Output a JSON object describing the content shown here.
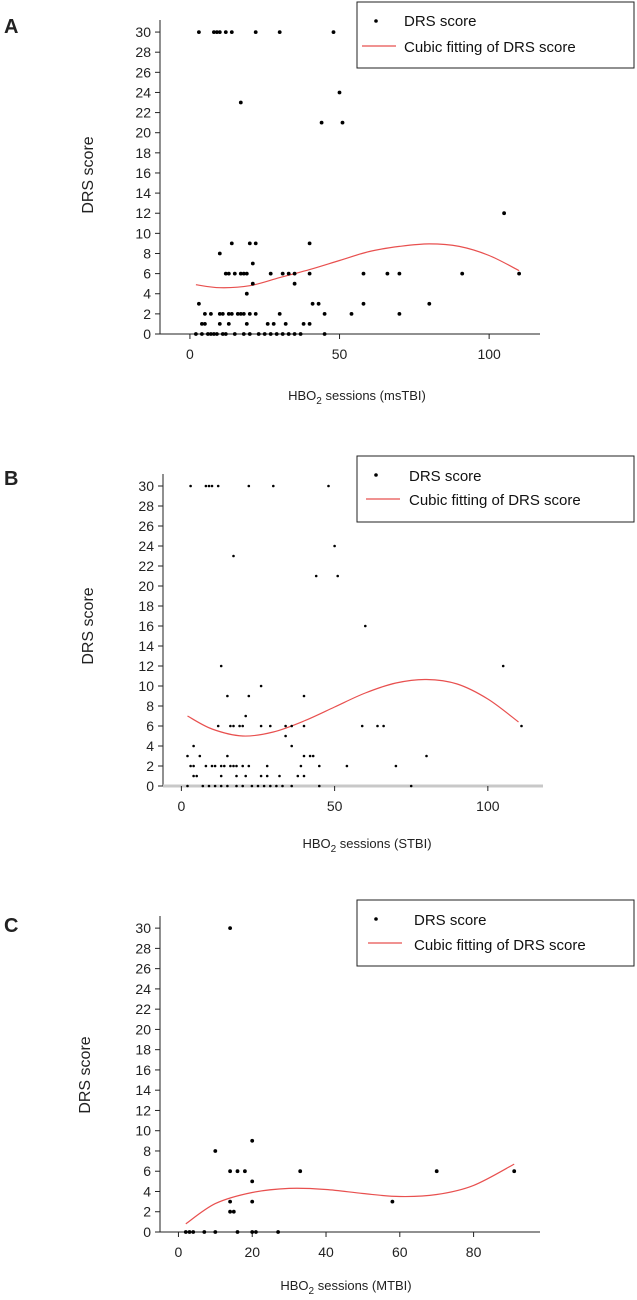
{
  "colors": {
    "points": "#000000",
    "fit": "#e8504f",
    "axis_gray": "#c8c8c8",
    "text": "#222222"
  },
  "chart_data": [
    {
      "panel": "A",
      "type": "scatter",
      "xlabel_main": "HBO",
      "xlabel_sub": "2",
      "xlabel_rest": " sessions (msTBI)",
      "ylabel": "DRS score",
      "xlim": [
        -10,
        117
      ],
      "ylim": [
        0,
        31
      ],
      "xticks": [
        0,
        50,
        100
      ],
      "yticks": [
        0,
        2,
        4,
        6,
        8,
        10,
        12,
        14,
        16,
        18,
        20,
        22,
        24,
        26,
        28,
        30
      ],
      "legend": [
        "DRS score",
        "Cubic fitting of DRS score"
      ],
      "series": [
        {
          "name": "DRS score",
          "points": [
            [
              3,
              30
            ],
            [
              8,
              30
            ],
            [
              9,
              30
            ],
            [
              10,
              30
            ],
            [
              12,
              30
            ],
            [
              14,
              30
            ],
            [
              22,
              30
            ],
            [
              30,
              30
            ],
            [
              48,
              30
            ],
            [
              50,
              24
            ],
            [
              17,
              23
            ],
            [
              44,
              21
            ],
            [
              51,
              21
            ],
            [
              105,
              12
            ],
            [
              10,
              8
            ],
            [
              14,
              9
            ],
            [
              20,
              9
            ],
            [
              22,
              9
            ],
            [
              40,
              9
            ],
            [
              21,
              7
            ],
            [
              12,
              6
            ],
            [
              13,
              6
            ],
            [
              15,
              6
            ],
            [
              17,
              6
            ],
            [
              18,
              6
            ],
            [
              19,
              6
            ],
            [
              27,
              6
            ],
            [
              31,
              6
            ],
            [
              33,
              6
            ],
            [
              35,
              6
            ],
            [
              40,
              6
            ],
            [
              58,
              6
            ],
            [
              66,
              6
            ],
            [
              70,
              6
            ],
            [
              91,
              6
            ],
            [
              110,
              6
            ],
            [
              21,
              5
            ],
            [
              35,
              5
            ],
            [
              19,
              4
            ],
            [
              41,
              3
            ],
            [
              43,
              3
            ],
            [
              58,
              3
            ],
            [
              80,
              3
            ],
            [
              3,
              3
            ],
            [
              5,
              2
            ],
            [
              7,
              2
            ],
            [
              10,
              2
            ],
            [
              11,
              2
            ],
            [
              13,
              2
            ],
            [
              14,
              2
            ],
            [
              16,
              2
            ],
            [
              17,
              2
            ],
            [
              18,
              2
            ],
            [
              20,
              2
            ],
            [
              22,
              2
            ],
            [
              30,
              2
            ],
            [
              45,
              2
            ],
            [
              54,
              2
            ],
            [
              70,
              2
            ],
            [
              4,
              1
            ],
            [
              5,
              1
            ],
            [
              10,
              1
            ],
            [
              13,
              1
            ],
            [
              19,
              1
            ],
            [
              26,
              1
            ],
            [
              28,
              1
            ],
            [
              32,
              1
            ],
            [
              38,
              1
            ],
            [
              40,
              1
            ],
            [
              2,
              0
            ],
            [
              4,
              0
            ],
            [
              6,
              0
            ],
            [
              7,
              0
            ],
            [
              8,
              0
            ],
            [
              9,
              0
            ],
            [
              11,
              0
            ],
            [
              12,
              0
            ],
            [
              15,
              0
            ],
            [
              18,
              0
            ],
            [
              20,
              0
            ],
            [
              23,
              0
            ],
            [
              25,
              0
            ],
            [
              27,
              0
            ],
            [
              29,
              0
            ],
            [
              31,
              0
            ],
            [
              33,
              0
            ],
            [
              35,
              0
            ],
            [
              37,
              0
            ],
            [
              45,
              0
            ]
          ]
        },
        {
          "name": "Cubic fitting of DRS score",
          "fit_points": [
            [
              2,
              4.9
            ],
            [
              10,
              4.6
            ],
            [
              20,
              4.8
            ],
            [
              30,
              5.6
            ],
            [
              40,
              6.4
            ],
            [
              50,
              7.3
            ],
            [
              60,
              8.2
            ],
            [
              70,
              8.7
            ],
            [
              80,
              8.95
            ],
            [
              90,
              8.7
            ],
            [
              100,
              7.8
            ],
            [
              110,
              6.3
            ]
          ]
        }
      ]
    },
    {
      "panel": "B",
      "type": "scatter",
      "xlabel_main": "HBO",
      "xlabel_sub": "2",
      "xlabel_rest": " sessions (STBI)",
      "ylabel": "DRS score",
      "xlim": [
        -6,
        118
      ],
      "ylim": [
        0,
        31
      ],
      "xticks": [
        0,
        50,
        100
      ],
      "yticks": [
        0,
        2,
        4,
        6,
        8,
        10,
        12,
        14,
        16,
        18,
        20,
        22,
        24,
        26,
        28,
        30
      ],
      "legend": [
        "DRS score",
        "Cubic fitting of DRS score"
      ],
      "series": [
        {
          "name": "DRS score",
          "points": [
            [
              3,
              30
            ],
            [
              8,
              30
            ],
            [
              9,
              30
            ],
            [
              10,
              30
            ],
            [
              12,
              30
            ],
            [
              22,
              30
            ],
            [
              30,
              30
            ],
            [
              48,
              30
            ],
            [
              50,
              24
            ],
            [
              17,
              23
            ],
            [
              44,
              21
            ],
            [
              51,
              21
            ],
            [
              60,
              16
            ],
            [
              105,
              12
            ],
            [
              13,
              12
            ],
            [
              26,
              10
            ],
            [
              40,
              9
            ],
            [
              15,
              9
            ],
            [
              22,
              9
            ],
            [
              21,
              7
            ],
            [
              12,
              6
            ],
            [
              16,
              6
            ],
            [
              17,
              6
            ],
            [
              19,
              6
            ],
            [
              20,
              6
            ],
            [
              26,
              6
            ],
            [
              29,
              6
            ],
            [
              34,
              6
            ],
            [
              36,
              6
            ],
            [
              40,
              6
            ],
            [
              59,
              6
            ],
            [
              64,
              6
            ],
            [
              66,
              6
            ],
            [
              111,
              6
            ],
            [
              34,
              5
            ],
            [
              36,
              4
            ],
            [
              4,
              4
            ],
            [
              40,
              3
            ],
            [
              42,
              3
            ],
            [
              43,
              3
            ],
            [
              80,
              3
            ],
            [
              2,
              3
            ],
            [
              6,
              3
            ],
            [
              15,
              3
            ],
            [
              3,
              2
            ],
            [
              4,
              2
            ],
            [
              8,
              2
            ],
            [
              10,
              2
            ],
            [
              11,
              2
            ],
            [
              13,
              2
            ],
            [
              14,
              2
            ],
            [
              16,
              2
            ],
            [
              17,
              2
            ],
            [
              18,
              2
            ],
            [
              20,
              2
            ],
            [
              22,
              2
            ],
            [
              28,
              2
            ],
            [
              39,
              2
            ],
            [
              45,
              2
            ],
            [
              54,
              2
            ],
            [
              70,
              2
            ],
            [
              4,
              1
            ],
            [
              5,
              1
            ],
            [
              13,
              1
            ],
            [
              18,
              1
            ],
            [
              21,
              1
            ],
            [
              26,
              1
            ],
            [
              28,
              1
            ],
            [
              32,
              1
            ],
            [
              38,
              1
            ],
            [
              40,
              1
            ],
            [
              2,
              0
            ],
            [
              7,
              0
            ],
            [
              9,
              0
            ],
            [
              11,
              0
            ],
            [
              13,
              0
            ],
            [
              15,
              0
            ],
            [
              18,
              0
            ],
            [
              20,
              0
            ],
            [
              23,
              0
            ],
            [
              25,
              0
            ],
            [
              27,
              0
            ],
            [
              29,
              0
            ],
            [
              31,
              0
            ],
            [
              33,
              0
            ],
            [
              36,
              0
            ],
            [
              45,
              0
            ],
            [
              75,
              0
            ]
          ]
        },
        {
          "name": "Cubic fitting of DRS score",
          "fit_points": [
            [
              2,
              7.0
            ],
            [
              10,
              5.7
            ],
            [
              20,
              5.0
            ],
            [
              30,
              5.4
            ],
            [
              40,
              6.5
            ],
            [
              50,
              7.9
            ],
            [
              60,
              9.3
            ],
            [
              70,
              10.3
            ],
            [
              80,
              10.65
            ],
            [
              90,
              10.2
            ],
            [
              100,
              8.7
            ],
            [
              110,
              6.4
            ]
          ]
        }
      ]
    },
    {
      "panel": "C",
      "type": "scatter",
      "xlabel_main": "HBO",
      "xlabel_sub": "2",
      "xlabel_rest": " sessions (MTBI)",
      "ylabel": "DRS score",
      "xlim": [
        -5,
        98
      ],
      "ylim": [
        0,
        31
      ],
      "xticks": [
        0,
        20,
        40,
        60,
        80
      ],
      "yticks": [
        0,
        2,
        4,
        6,
        8,
        10,
        12,
        14,
        16,
        18,
        20,
        22,
        24,
        26,
        28,
        30
      ],
      "legend": [
        "DRS score",
        "Cubic fitting of DRS score"
      ],
      "series": [
        {
          "name": "DRS score",
          "points": [
            [
              14,
              30
            ],
            [
              10,
              8
            ],
            [
              20,
              9
            ],
            [
              14,
              6
            ],
            [
              16,
              6
            ],
            [
              18,
              6
            ],
            [
              33,
              6
            ],
            [
              70,
              6
            ],
            [
              91,
              6
            ],
            [
              20,
              5
            ],
            [
              14,
              3
            ],
            [
              58,
              3
            ],
            [
              20,
              3
            ],
            [
              14,
              2
            ],
            [
              15,
              2
            ],
            [
              2,
              0
            ],
            [
              3,
              0
            ],
            [
              4,
              0
            ],
            [
              7,
              0
            ],
            [
              10,
              0
            ],
            [
              16,
              0
            ],
            [
              20,
              0
            ],
            [
              21,
              0
            ],
            [
              27,
              0
            ]
          ]
        },
        {
          "name": "Cubic fitting of DRS score",
          "fit_points": [
            [
              2,
              0.8
            ],
            [
              10,
              2.8
            ],
            [
              20,
              3.9
            ],
            [
              30,
              4.3
            ],
            [
              40,
              4.2
            ],
            [
              50,
              3.8
            ],
            [
              60,
              3.5
            ],
            [
              70,
              3.7
            ],
            [
              80,
              4.6
            ],
            [
              91,
              6.7
            ]
          ]
        }
      ]
    }
  ]
}
